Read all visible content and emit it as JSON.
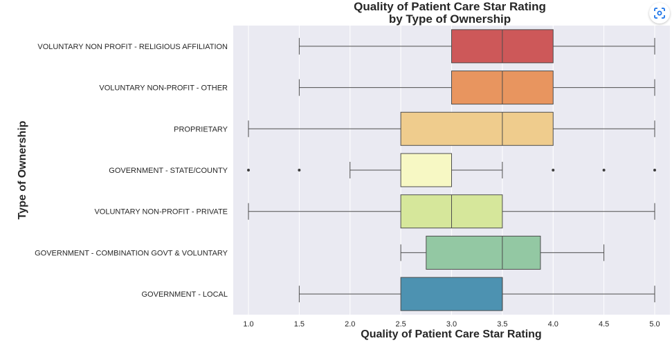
{
  "chart_data": {
    "type": "box",
    "orientation": "horizontal",
    "title": [
      "Quality of Patient Care Star Rating",
      "by Type of Ownership"
    ],
    "xlabel": "Quality of Patient Care Star Rating",
    "ylabel": "Type of Ownership",
    "xlim": [
      0.85,
      5.15
    ],
    "xticks": [
      "1.0",
      "1.5",
      "2.0",
      "2.5",
      "3.0",
      "3.5",
      "4.0",
      "4.5",
      "5.0"
    ],
    "grid": true,
    "colors": {
      "plot_background": "#eaeaf2",
      "grid": "#ffffff",
      "line": "#4d4d4d"
    },
    "categories": [
      {
        "label": "VOLUNTARY NON PROFIT - RELIGIOUS AFFILIATION",
        "whisker_low": 1.5,
        "q1": 3.0,
        "median": 3.5,
        "q3": 4.0,
        "whisker_high": 5.0,
        "outliers": [],
        "color": "#cd5859"
      },
      {
        "label": "VOLUNTARY NON-PROFIT - OTHER",
        "whisker_low": 1.5,
        "q1": 3.0,
        "median": 3.5,
        "q3": 4.0,
        "whisker_high": 5.0,
        "outliers": [],
        "color": "#e8955f"
      },
      {
        "label": "PROPRIETARY",
        "whisker_low": 1.0,
        "q1": 2.5,
        "median": 3.5,
        "q3": 4.0,
        "whisker_high": 5.0,
        "outliers": [],
        "color": "#efcc8d"
      },
      {
        "label": "GOVERNMENT - STATE/COUNTY",
        "whisker_low": 2.0,
        "q1": 2.5,
        "median": 3.0,
        "q3": 3.0,
        "whisker_high": 3.5,
        "outliers": [
          1.0,
          1.5,
          4.0,
          4.5,
          5.0
        ],
        "color": "#f7f8c4"
      },
      {
        "label": "VOLUNTARY NON-PROFIT - PRIVATE",
        "whisker_low": 1.0,
        "q1": 2.5,
        "median": 3.0,
        "q3": 3.5,
        "whisker_high": 5.0,
        "outliers": [],
        "color": "#d6e79b"
      },
      {
        "label": "GOVERNMENT - COMBINATION GOVT & VOLUNTARY",
        "whisker_low": 2.5,
        "q1": 2.75,
        "median": 3.5,
        "q3": 3.875,
        "whisker_high": 4.5,
        "outliers": [],
        "color": "#93c8a3"
      },
      {
        "label": "GOVERNMENT - LOCAL",
        "whisker_low": 1.5,
        "q1": 2.5,
        "median": 3.5,
        "q3": 3.5,
        "whisker_high": 5.0,
        "outliers": [],
        "color": "#4d92b1"
      }
    ]
  },
  "toolbar": {
    "lens_icon": "google-lens-icon"
  }
}
